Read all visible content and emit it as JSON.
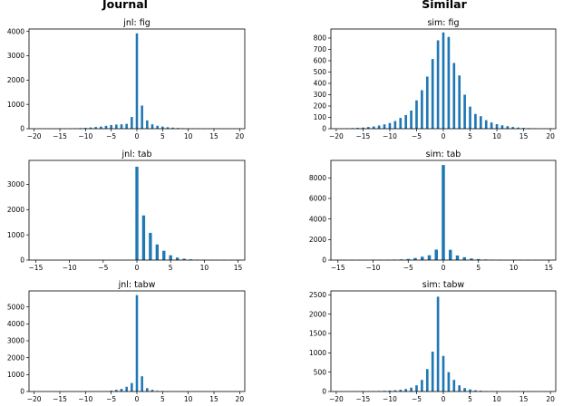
{
  "column_titles": {
    "left": "Journal",
    "right": "Similar"
  },
  "colors": {
    "bar": "#1f77b4",
    "axis": "#000000",
    "background": "#ffffff"
  },
  "chart_data": [
    {
      "type": "bar",
      "title": "jnl: fig",
      "xlim": [
        -21,
        21
      ],
      "ylim": [
        0,
        4100
      ],
      "xticks": [
        -20,
        -15,
        -10,
        -5,
        0,
        5,
        10,
        15,
        20
      ],
      "yticks": [
        0,
        1000,
        2000,
        3000,
        4000
      ],
      "x": [
        -19,
        -18,
        -17,
        -16,
        -15,
        -14,
        -13,
        -12,
        -11,
        -10,
        -9,
        -8,
        -7,
        -6,
        -5,
        -4,
        -3,
        -2,
        -1,
        0,
        1,
        2,
        3,
        4,
        5,
        6,
        7,
        8,
        9,
        10,
        11,
        12,
        13,
        14,
        15,
        16,
        17,
        18,
        19,
        20
      ],
      "values": [
        3,
        4,
        5,
        6,
        8,
        10,
        12,
        18,
        25,
        35,
        50,
        70,
        90,
        120,
        150,
        170,
        180,
        200,
        480,
        3920,
        950,
        340,
        180,
        120,
        90,
        60,
        45,
        30,
        20,
        15,
        10,
        8,
        6,
        5,
        4,
        3,
        3,
        2,
        2,
        1
      ]
    },
    {
      "type": "bar",
      "title": "sim: fig",
      "xlim": [
        -21,
        21
      ],
      "ylim": [
        0,
        880
      ],
      "xticks": [
        -20,
        -15,
        -10,
        -5,
        0,
        5,
        10,
        15,
        20
      ],
      "yticks": [
        0,
        100,
        200,
        300,
        400,
        500,
        600,
        700,
        800
      ],
      "x": [
        -19,
        -18,
        -17,
        -16,
        -15,
        -14,
        -13,
        -12,
        -11,
        -10,
        -9,
        -8,
        -7,
        -6,
        -5,
        -4,
        -3,
        -2,
        -1,
        0,
        1,
        2,
        3,
        4,
        5,
        6,
        7,
        8,
        9,
        10,
        11,
        12,
        13,
        14,
        15,
        16,
        17,
        18,
        19,
        20
      ],
      "values": [
        2,
        3,
        5,
        8,
        10,
        15,
        20,
        28,
        38,
        50,
        68,
        95,
        120,
        160,
        250,
        340,
        460,
        615,
        780,
        850,
        810,
        580,
        470,
        300,
        195,
        130,
        110,
        75,
        55,
        40,
        30,
        22,
        15,
        10,
        7,
        5,
        3,
        2,
        2,
        1
      ]
    },
    {
      "type": "bar",
      "title": "jnl: tab",
      "xlim": [
        -16,
        16
      ],
      "ylim": [
        0,
        3950
      ],
      "xticks": [
        -15,
        -10,
        -5,
        0,
        5,
        10,
        15
      ],
      "yticks": [
        0,
        1000,
        2000,
        3000
      ],
      "x": [
        -15,
        -14,
        -13,
        -12,
        -11,
        -10,
        -9,
        -8,
        -7,
        -6,
        -5,
        -4,
        -3,
        -2,
        -1,
        0,
        1,
        2,
        3,
        4,
        5,
        6,
        7,
        8,
        9,
        10,
        11,
        12,
        13,
        14,
        15
      ],
      "values": [
        0,
        0,
        0,
        0,
        0,
        0,
        0,
        0,
        0,
        0,
        0,
        0,
        0,
        0,
        0,
        3700,
        1770,
        1080,
        620,
        370,
        190,
        100,
        55,
        30,
        15,
        10,
        5,
        3,
        2,
        1,
        1
      ]
    },
    {
      "type": "bar",
      "title": "sim: tab",
      "xlim": [
        -16,
        16
      ],
      "ylim": [
        0,
        9700
      ],
      "xticks": [
        -15,
        -10,
        -5,
        0,
        5,
        10,
        15
      ],
      "yticks": [
        0,
        2000,
        4000,
        6000,
        8000
      ],
      "x": [
        -15,
        -14,
        -13,
        -12,
        -11,
        -10,
        -9,
        -8,
        -7,
        -6,
        -5,
        -4,
        -3,
        -2,
        -1,
        0,
        1,
        2,
        3,
        4,
        5,
        6,
        7,
        8,
        9,
        10,
        11,
        12,
        13,
        14,
        15
      ],
      "values": [
        5,
        8,
        10,
        12,
        15,
        20,
        25,
        35,
        50,
        70,
        110,
        200,
        330,
        470,
        1020,
        9250,
        1000,
        450,
        280,
        160,
        100,
        60,
        40,
        30,
        20,
        15,
        10,
        8,
        5,
        3,
        2
      ]
    },
    {
      "type": "bar",
      "title": "jnl: tabw",
      "xlim": [
        -21,
        21
      ],
      "ylim": [
        0,
        5950
      ],
      "xticks": [
        -20,
        -15,
        -10,
        -5,
        0,
        5,
        10,
        15,
        20
      ],
      "yticks": [
        0,
        1000,
        2000,
        3000,
        4000,
        5000
      ],
      "x": [
        -19,
        -18,
        -17,
        -16,
        -15,
        -14,
        -13,
        -12,
        -11,
        -10,
        -9,
        -8,
        -7,
        -6,
        -5,
        -4,
        -3,
        -2,
        -1,
        0,
        1,
        2,
        3,
        4,
        5,
        6,
        7,
        8,
        9,
        10,
        11,
        12,
        13,
        14,
        15,
        16,
        17,
        18,
        19,
        20
      ],
      "values": [
        0,
        0,
        0,
        0,
        0,
        0,
        0,
        0,
        2,
        3,
        5,
        10,
        15,
        25,
        50,
        100,
        160,
        280,
        500,
        5700,
        900,
        200,
        100,
        40,
        20,
        10,
        5,
        3,
        2,
        1,
        0,
        0,
        0,
        0,
        0,
        0,
        0,
        0,
        0,
        0
      ]
    },
    {
      "type": "bar",
      "title": "sim: tabw",
      "xlim": [
        -21,
        21
      ],
      "ylim": [
        0,
        2600
      ],
      "xticks": [
        -20,
        -15,
        -10,
        -5,
        0,
        5,
        10,
        15,
        20
      ],
      "yticks": [
        0,
        500,
        1000,
        1500,
        2000,
        2500
      ],
      "x": [
        -19,
        -18,
        -17,
        -16,
        -15,
        -14,
        -13,
        -12,
        -11,
        -10,
        -9,
        -8,
        -7,
        -6,
        -5,
        -4,
        -3,
        -2,
        -1,
        0,
        1,
        2,
        3,
        4,
        5,
        6,
        7,
        8,
        9,
        10,
        11,
        12,
        13,
        14,
        15,
        16,
        17,
        18,
        19,
        20
      ],
      "values": [
        2,
        3,
        4,
        5,
        6,
        8,
        10,
        14,
        18,
        24,
        32,
        45,
        65,
        100,
        160,
        300,
        580,
        1030,
        2450,
        920,
        500,
        300,
        160,
        90,
        55,
        30,
        20,
        12,
        8,
        5,
        4,
        3,
        2,
        2,
        1,
        1,
        1,
        1,
        1,
        1
      ]
    }
  ]
}
